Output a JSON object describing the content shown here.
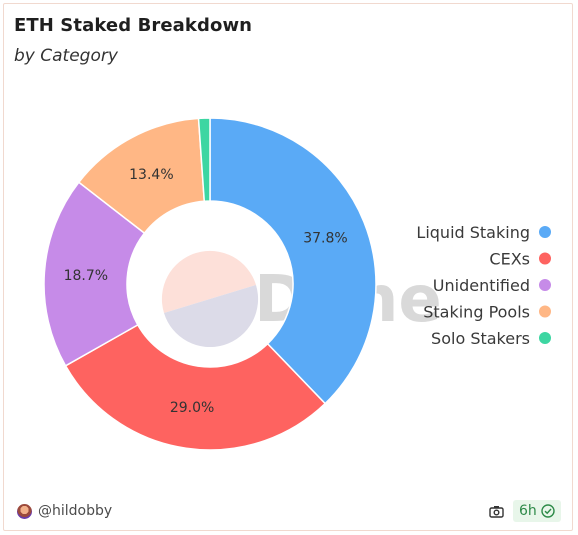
{
  "header": {
    "title": "ETH Staked Breakdown",
    "subtitle": "by Category"
  },
  "watermark": "Dune",
  "footer": {
    "author": "@hildobby",
    "age": "6h",
    "camera_icon": "camera-icon",
    "status_icon": "check-circle-icon"
  },
  "chart_data": {
    "type": "pie",
    "style": "donut",
    "categories": [
      "Liquid Staking",
      "CEXs",
      "Unidentified",
      "Staking Pools",
      "Solo Stakers"
    ],
    "values": [
      37.8,
      29.0,
      18.7,
      13.4,
      1.1
    ],
    "labels": [
      "37.8%",
      "29.0%",
      "18.7%",
      "13.4%",
      ""
    ],
    "colors": [
      "#5aaaf6",
      "#fe6360",
      "#c68be8",
      "#ffb785",
      "#3dd6a2"
    ],
    "legend_position": "right"
  }
}
